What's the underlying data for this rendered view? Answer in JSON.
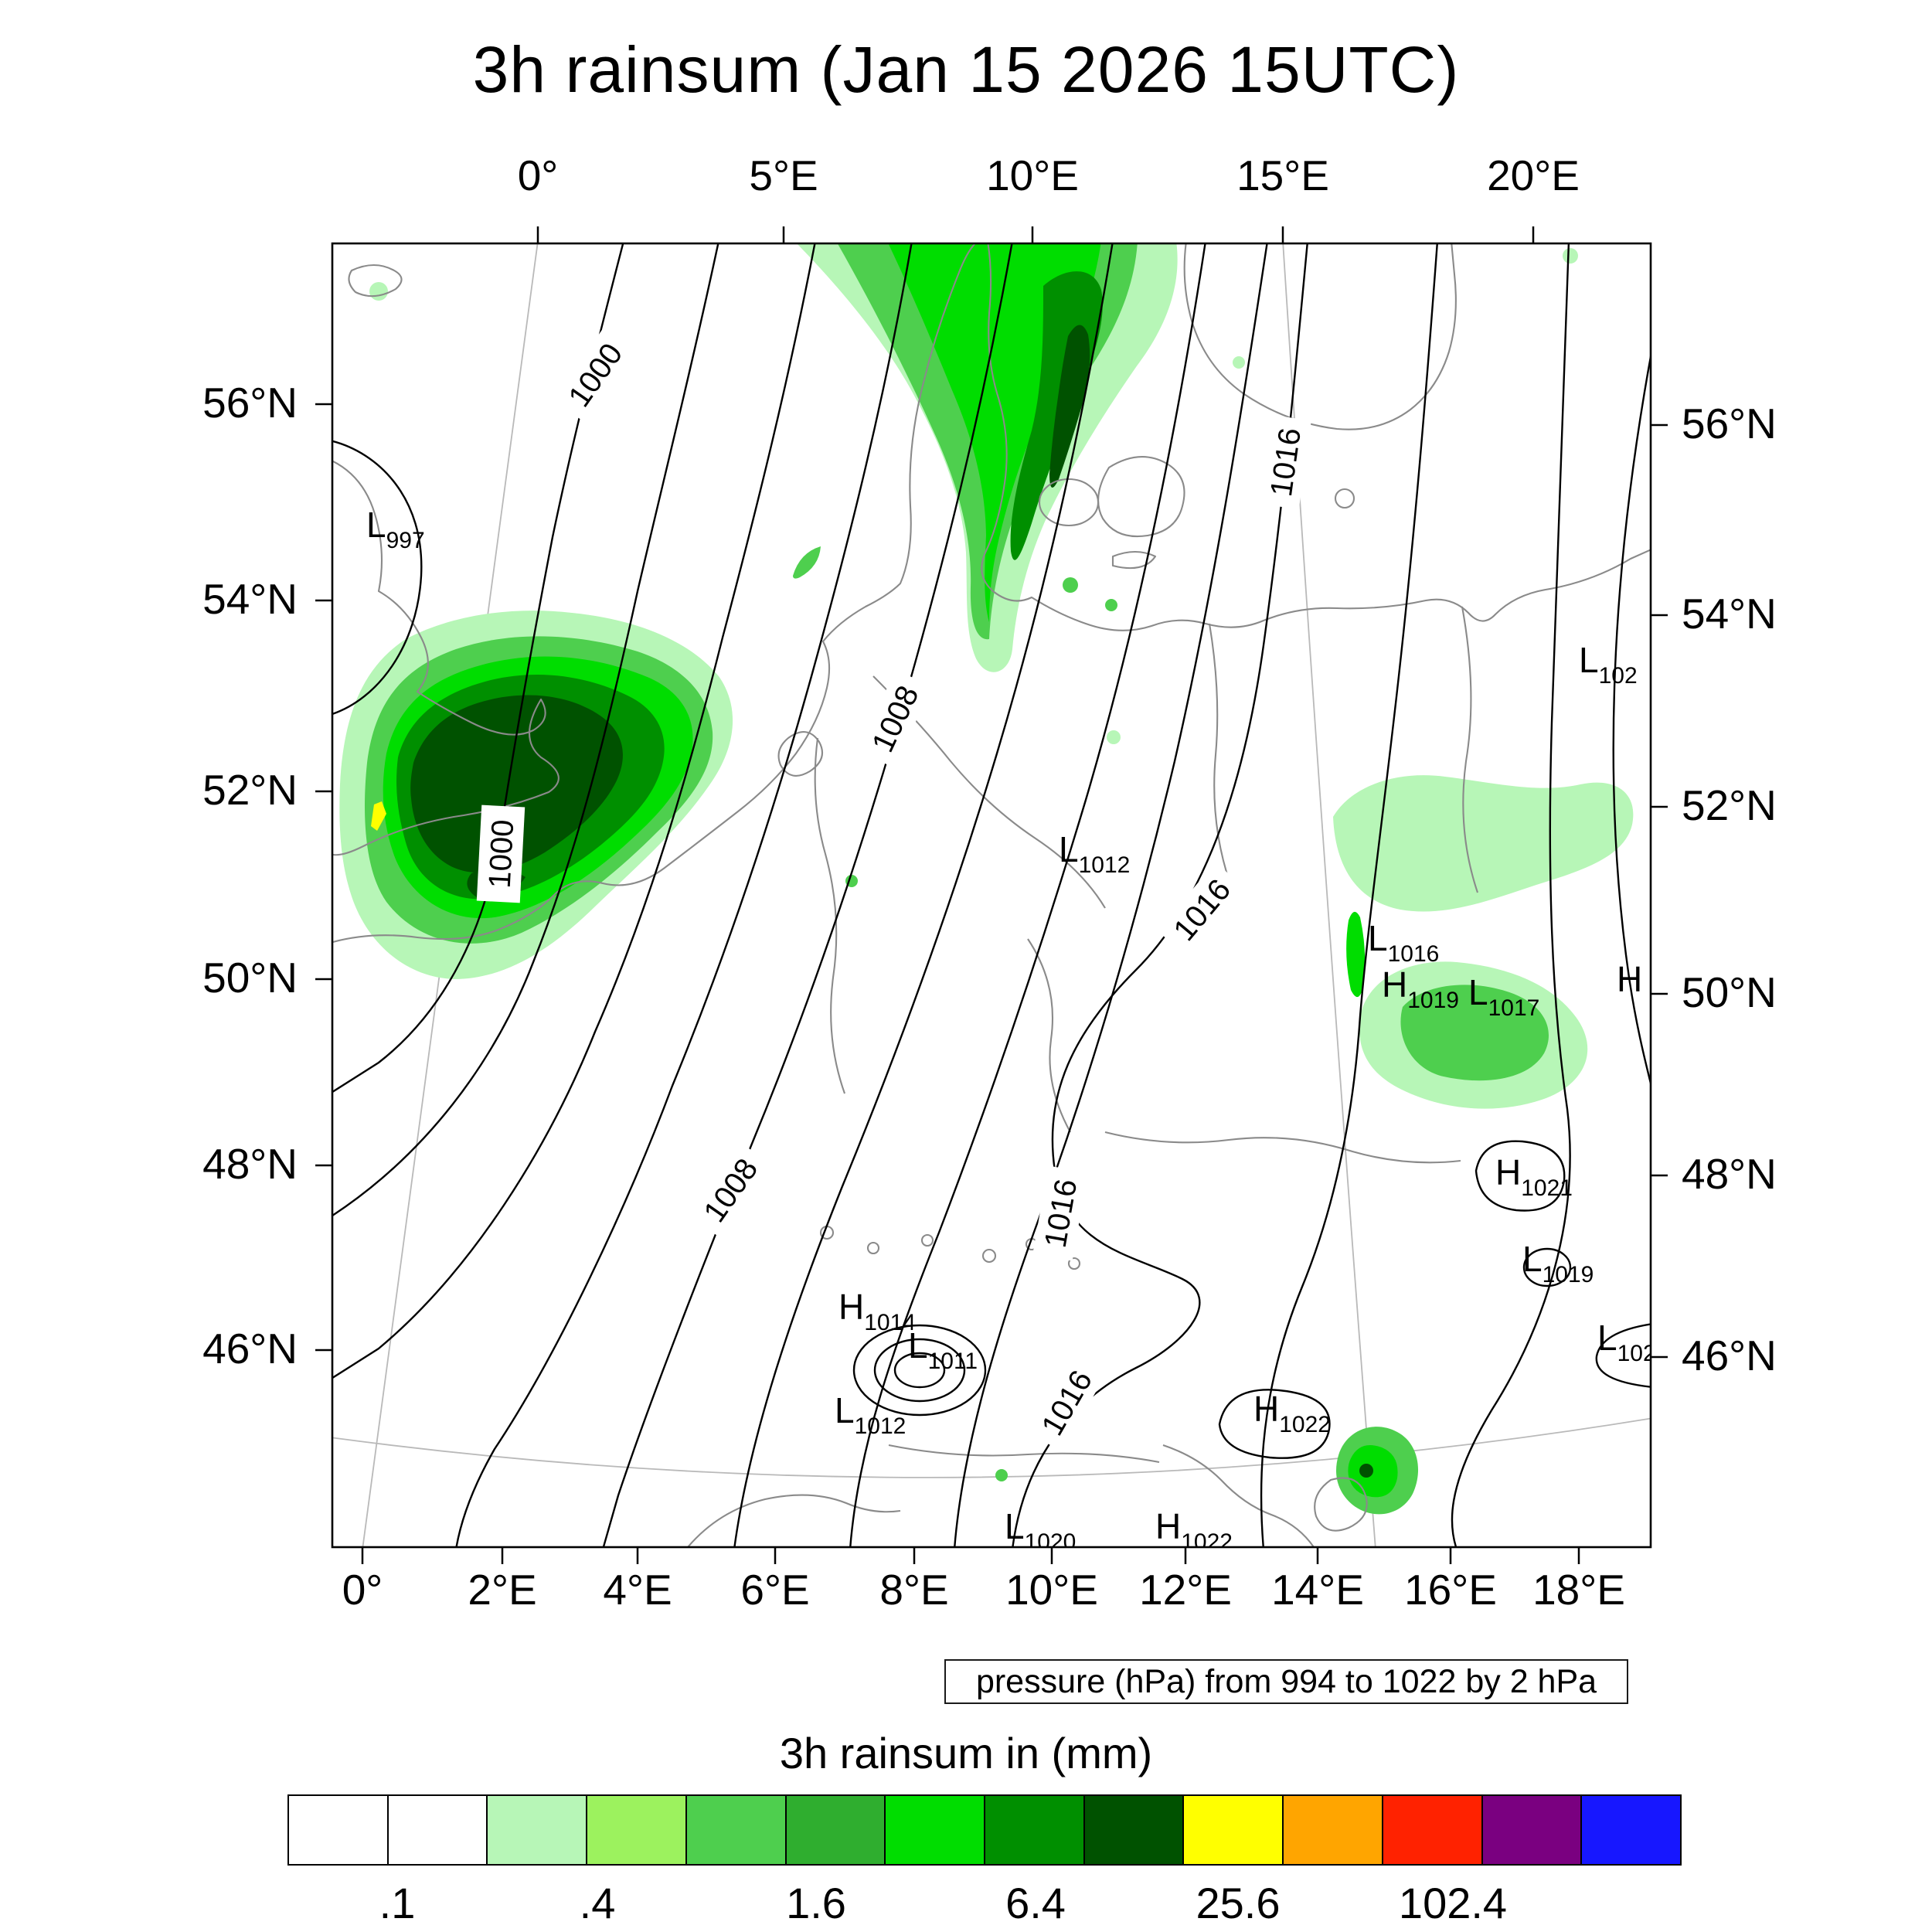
{
  "title": "3h rainsum (Jan 15 2026 15UTC)",
  "axes": {
    "top": [
      "0°",
      "5°E",
      "10°E",
      "15°E",
      "20°E"
    ],
    "bottom": [
      "0°",
      "2°E",
      "4°E",
      "6°E",
      "8°E",
      "10°E",
      "12°E",
      "14°E",
      "16°E",
      "18°E"
    ],
    "left": [
      "56°N",
      "54°N",
      "52°N",
      "50°N",
      "48°N",
      "46°N"
    ],
    "right": [
      "56°N",
      "54°N",
      "52°N",
      "50°N",
      "48°N",
      "46°N"
    ]
  },
  "pressure_caption": "pressure (hPa) from 994 to 1022 by 2 hPa",
  "legend": {
    "title": "3h rainsum in (mm)",
    "tick_labels": [
      ".1",
      ".4",
      "1.6",
      "6.4",
      "25.6",
      "102.4"
    ],
    "colors": [
      "#ffffff",
      "#ffffff",
      "#b7f6b7",
      "#9cf25e",
      "#4ecf4e",
      "#2fae2f",
      "#00dd00",
      "#008f00",
      "#005200",
      "#ffff00",
      "#ffa500",
      "#ff2200",
      "#7a0080",
      "#1717ff"
    ]
  },
  "contour_labels": [
    "1000",
    "1008",
    "1016",
    "1000",
    "1008",
    "1016",
    "1016",
    "1016"
  ],
  "pressure_centers": [
    {
      "letter": "L",
      "value": "997"
    },
    {
      "letter": "L",
      "value": "1012"
    },
    {
      "letter": "L",
      "value": "1016"
    },
    {
      "letter": "H",
      "value": "1019"
    },
    {
      "letter": "L",
      "value": "1017"
    },
    {
      "letter": "H",
      "value": ""
    },
    {
      "letter": "L",
      "value": "102"
    },
    {
      "letter": "H",
      "value": "1021"
    },
    {
      "letter": "L",
      "value": "1019"
    },
    {
      "letter": "L",
      "value": "102"
    },
    {
      "letter": "H",
      "value": "1014"
    },
    {
      "letter": "L",
      "value": "1011"
    },
    {
      "letter": "L",
      "value": "1012"
    },
    {
      "letter": "H",
      "value": "1022"
    },
    {
      "letter": "L",
      "value": "1020"
    },
    {
      "letter": "H",
      "value": "1022"
    }
  ],
  "chart_data": {
    "type": "heatmap",
    "subtype": "meteorological contour map with shaded precipitation",
    "title": "3h rainsum (Jan 15 2026 15UTC)",
    "shaded_field": {
      "name": "3h rainsum",
      "units": "mm",
      "labeled_levels": [
        0.1,
        0.4,
        1.6,
        6.4,
        25.6,
        102.4
      ],
      "palette": [
        "#ffffff",
        "#ffffff",
        "#b7f6b7",
        "#9cf25e",
        "#4ecf4e",
        "#2fae2f",
        "#00dd00",
        "#008f00",
        "#005200",
        "#ffff00",
        "#ffa500",
        "#ff2200",
        "#7a0080",
        "#1717ff"
      ]
    },
    "contour_field": {
      "name": "pressure",
      "units": "hPa",
      "from": 994,
      "to": 1022,
      "interval": 2,
      "labeled_contours": [
        1000,
        1008,
        1016
      ]
    },
    "x_axis": {
      "ticks_top": [
        "0°",
        "5°E",
        "10°E",
        "15°E",
        "20°E"
      ],
      "ticks_bottom": [
        "0°",
        "2°E",
        "4°E",
        "6°E",
        "8°E",
        "10°E",
        "12°E",
        "14°E",
        "16°E",
        "18°E"
      ]
    },
    "y_axis": {
      "ticks": [
        "56°N",
        "54°N",
        "52°N",
        "50°N",
        "48°N",
        "46°N"
      ]
    },
    "pressure_centers": [
      {
        "type": "L",
        "hPa": 997,
        "approx_lon": "1W",
        "approx_lat": "54.5N"
      },
      {
        "type": "L",
        "hPa": 1012,
        "approx_lon": "10.5E",
        "approx_lat": "51N"
      },
      {
        "type": "L",
        "hPa": 1016,
        "approx_lon": "15.5E",
        "approx_lat": "50.5N"
      },
      {
        "type": "H",
        "hPa": 1019,
        "approx_lon": "16E",
        "approx_lat": "50N"
      },
      {
        "type": "L",
        "hPa": 1017,
        "approx_lon": "17E",
        "approx_lat": "50N"
      },
      {
        "type": "H",
        "hPa": null,
        "approx_lon": "19.5E",
        "approx_lat": "50N"
      },
      {
        "type": "L",
        "hPa": null,
        "approx_lon": "20E",
        "approx_lat": "53.5N"
      },
      {
        "type": "H",
        "hPa": 1021,
        "approx_lon": "17.5E",
        "approx_lat": "48N"
      },
      {
        "type": "L",
        "hPa": 1019,
        "approx_lon": "18E",
        "approx_lat": "47N"
      },
      {
        "type": "L",
        "hPa": null,
        "approx_lon": "18.5E",
        "approx_lat": "46N"
      },
      {
        "type": "H",
        "hPa": 1014,
        "approx_lon": "7.5E",
        "approx_lat": "46.5N"
      },
      {
        "type": "L",
        "hPa": 1011,
        "approx_lon": "8.5E",
        "approx_lat": "46N"
      },
      {
        "type": "L",
        "hPa": 1012,
        "approx_lon": "7.5E",
        "approx_lat": "45.5N"
      },
      {
        "type": "H",
        "hPa": 1022,
        "approx_lon": "13.5E",
        "approx_lat": "45.5N"
      },
      {
        "type": "L",
        "hPa": 1020,
        "approx_lon": "10E",
        "approx_lat": "44.5N"
      },
      {
        "type": "H",
        "hPa": 1022,
        "approx_lon": "12E",
        "approx_lat": "44.5N"
      }
    ],
    "rain_areas": [
      {
        "region": "southern England / English Channel / Belgium (1W-4E, 50-53.5N)",
        "max_shading_mm": "12.8-25.6 with tiny spot above 25.6"
      },
      {
        "region": "Denmark / Jutland / Kattegat band (8-13E, 54.5-57.5N)",
        "max_shading_mm": "6.4-25.6"
      },
      {
        "region": "southern Poland / Slovakia patches (15-20E, 48.5-52N)",
        "max_shading_mm": "0.4-1.6"
      },
      {
        "region": "Slovenia / NE Adriatic spot (15E, 45.5N)",
        "max_shading_mm": "1.6-12.8"
      }
    ]
  }
}
